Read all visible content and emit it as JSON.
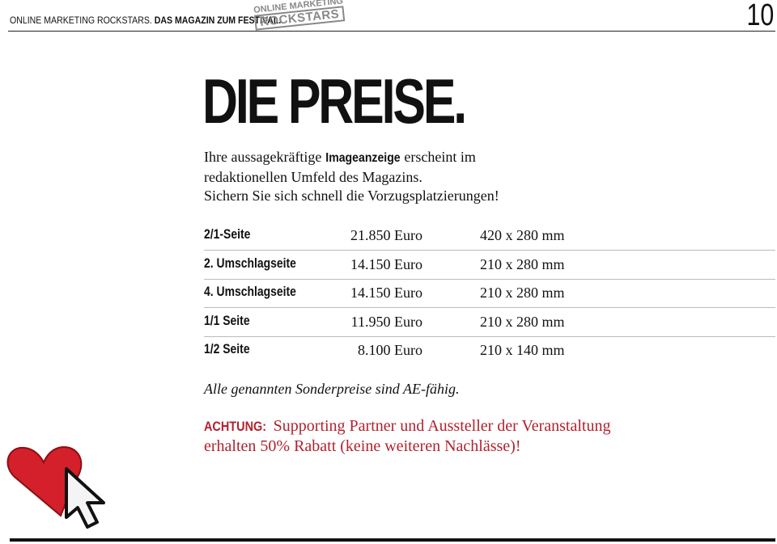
{
  "header": {
    "left": "ONLINE MARKETING ROCKSTARS.",
    "left_bold": "DAS MAGAZIN ZUM FESTIVAL.",
    "logo_top": "ONLINE MARKETING",
    "logo_bottom": "ROCKSTARS",
    "page_number": "10"
  },
  "title": "DIE PREISE.",
  "intro": {
    "line1": [
      "Ihre aussagekräftige",
      "Imageanzeige",
      "erscheint im"
    ],
    "line2": "redaktionellen Umfeld des Magazins.",
    "line3": "Sichern Sie sich schnell die Vorzugsplatzierungen!"
  },
  "table": {
    "rows": [
      [
        "2/1-Seite",
        "21.850 Euro",
        "420 x 280 mm"
      ],
      [
        "2. Umschlagseite",
        "14.150 Euro",
        "210 x 280 mm"
      ],
      [
        "4. Umschlagseite",
        "14.150 Euro",
        "210 x 280 mm"
      ],
      [
        "1/1 Seite",
        "11.950 Euro",
        "210 x 280 mm"
      ],
      [
        "1/2 Seite",
        "8.100 Euro",
        "210 x 140 mm"
      ]
    ]
  },
  "note": "Alle genannten Sonderpreise sind AE-fähig.",
  "notice": {
    "label": "ACHTUNG:",
    "line1": "Supporting Partner und Aussteller der Veranstaltung",
    "line2": "erhalten 50% Rabatt (keine weiteren Nachlässe)!"
  }
}
